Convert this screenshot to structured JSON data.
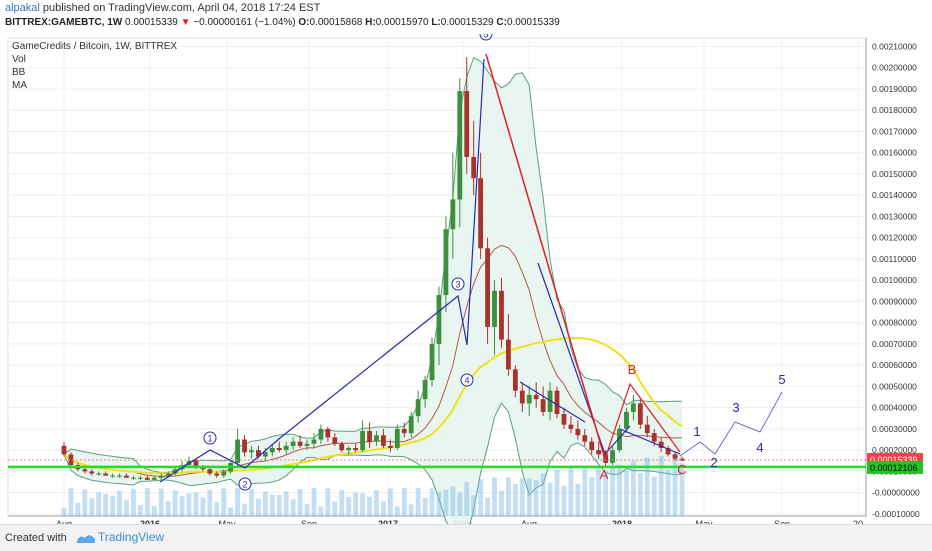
{
  "header": {
    "author": "alpakal",
    "published": "published on TradingView.com, April 04, 2018 17:24 EST",
    "symbol": "BITTREX:GAMEBTC, 1W",
    "price": "0.00015339",
    "change_arrow": "▼",
    "change": "−0.00000161 (−1.04%)",
    "o_label": "O:",
    "o_value": "0.00015868",
    "h_label": "H:",
    "h_value": "0.00015970",
    "l_label": "L:",
    "l_value": "0.00015329",
    "c_label": "C:",
    "c_value": "0.00015339"
  },
  "legend": {
    "title": "GameCredits / Bitcoin, 1W, BITTREX",
    "items": [
      "Vol",
      "BB",
      "MA"
    ]
  },
  "footer": {
    "created_with": "Created with",
    "brand": "TradingView"
  },
  "colors": {
    "up": "#3c8f3c",
    "down": "#a8322c",
    "bb_band": "#5aa080",
    "bb_fill": "#e6f4ee",
    "ma_yellow": "#f0e21a",
    "bb_mid": "#b05a4a",
    "wave_blue": "#2a2ab0",
    "red_line": "#e02020",
    "support_green": "#21e021",
    "price_tag": "#ef4444",
    "support_tag": "#21c521",
    "volume": "#7ab8e8"
  },
  "chart_data": {
    "type": "candlestick",
    "x_ticks": [
      "Aug",
      "2016",
      "May",
      "Sep",
      "2017",
      "May",
      "Aug",
      "2018",
      "May",
      "Sep",
      "20"
    ],
    "y_ticks": [
      "0.00210000",
      "0.00200000",
      "0.00190000",
      "0.00180000",
      "0.00170000",
      "0.00160000",
      "0.00150000",
      "0.00140000",
      "0.00130000",
      "0.00120000",
      "0.00110000",
      "0.00100000",
      "0.00090000",
      "0.00080000",
      "0.00070000",
      "0.00060000",
      "0.00050000",
      "0.00040000",
      "0.00030000",
      "0.00020000",
      "0.00010000",
      "-0.00000000",
      "-0.00010000"
    ],
    "ylim": [
      -0.00011,
      0.00214
    ],
    "current_price_label": "0.00015339",
    "support_label": "0.00012106",
    "support_level": 0.00012106,
    "wave_labels_circled": [
      "1",
      "2",
      "3",
      "4",
      "5"
    ],
    "wave_labels_plain": [
      "A",
      "B",
      "C",
      "1",
      "2",
      "3",
      "4",
      "5"
    ],
    "candles_approx": [
      [
        0.00022,
        0.00024,
        0.00017,
        0.00018
      ],
      [
        0.00018,
        0.00019,
        0.00012,
        0.00013
      ],
      [
        0.00013,
        0.00014,
        0.0001,
        0.00011
      ],
      [
        0.00011,
        0.00012,
        9e-05,
        0.0001
      ],
      [
        0.0001,
        0.00011,
        8e-05,
        9e-05
      ],
      [
        9e-05,
        0.0001,
        8e-05,
        9e-05
      ],
      [
        9e-05,
        0.0001,
        8e-05,
        8e-05
      ],
      [
        8e-05,
        9e-05,
        7e-05,
        8e-05
      ],
      [
        8e-05,
        9e-05,
        7e-05,
        8e-05
      ],
      [
        8e-05,
        9e-05,
        7e-05,
        7e-05
      ],
      [
        7e-05,
        8e-05,
        6e-05,
        7e-05
      ],
      [
        7e-05,
        8e-05,
        6e-05,
        7e-05
      ],
      [
        7e-05,
        8e-05,
        6e-05,
        6e-05
      ],
      [
        6e-05,
        8e-05,
        6e-05,
        7e-05
      ],
      [
        7e-05,
        9e-05,
        6e-05,
        8e-05
      ],
      [
        8e-05,
        0.0001,
        7e-05,
        9e-05
      ],
      [
        9e-05,
        0.00012,
        8e-05,
        0.00011
      ],
      [
        0.00011,
        0.00015,
        0.0001,
        0.00013
      ],
      [
        0.00013,
        0.00017,
        0.00012,
        0.00015
      ],
      [
        0.00015,
        0.00016,
        0.00011,
        0.00012
      ],
      [
        0.00012,
        0.00013,
        0.0001,
        0.00011
      ],
      [
        0.00011,
        0.00012,
        8e-05,
        9e-05
      ],
      [
        9e-05,
        0.0001,
        7e-05,
        8e-05
      ],
      [
        8e-05,
        0.00011,
        7e-05,
        0.0001
      ],
      [
        0.0001,
        0.00015,
        9e-05,
        0.00014
      ],
      [
        0.00014,
        0.0003,
        0.00012,
        0.00025
      ],
      [
        0.00025,
        0.00027,
        0.00017,
        0.00019
      ],
      [
        0.00019,
        0.00022,
        0.00016,
        0.0002
      ],
      [
        0.0002,
        0.00022,
        0.00016,
        0.00017
      ],
      [
        0.00017,
        0.00021,
        0.00015,
        0.00019
      ],
      [
        0.00019,
        0.00023,
        0.00017,
        0.00021
      ],
      [
        0.00021,
        0.00024,
        0.00019,
        0.0002
      ],
      [
        0.0002,
        0.00024,
        0.00018,
        0.00022
      ],
      [
        0.00022,
        0.00026,
        0.0002,
        0.00024
      ],
      [
        0.00024,
        0.00027,
        0.00021,
        0.00022
      ],
      [
        0.00022,
        0.00025,
        0.0002,
        0.00023
      ],
      [
        0.00023,
        0.00028,
        0.00021,
        0.00025
      ],
      [
        0.00025,
        0.00032,
        0.00023,
        0.0003
      ],
      [
        0.0003,
        0.00031,
        0.00024,
        0.00026
      ],
      [
        0.00026,
        0.00028,
        0.00022,
        0.00023
      ],
      [
        0.00023,
        0.00024,
        0.00019,
        0.0002
      ],
      [
        0.0002,
        0.00022,
        0.00018,
        0.00021
      ],
      [
        0.00021,
        0.00023,
        0.00019,
        0.0002
      ],
      [
        0.0002,
        0.00034,
        0.00019,
        0.00029
      ],
      [
        0.00029,
        0.00033,
        0.00021,
        0.00024
      ],
      [
        0.00024,
        0.00029,
        0.00022,
        0.00027
      ],
      [
        0.00027,
        0.0003,
        0.00021,
        0.00022
      ],
      [
        0.00022,
        0.00025,
        0.00019,
        0.00021
      ],
      [
        0.00021,
        0.00032,
        0.0002,
        0.0003
      ],
      [
        0.0003,
        0.00033,
        0.00026,
        0.00028
      ],
      [
        0.00028,
        0.00038,
        0.00026,
        0.00036
      ],
      [
        0.00036,
        0.00048,
        0.00033,
        0.00044
      ],
      [
        0.00044,
        0.00055,
        0.0004,
        0.00053
      ],
      [
        0.00053,
        0.00073,
        0.0005,
        0.0007
      ],
      [
        0.0007,
        0.00097,
        0.0006,
        0.00093
      ],
      [
        0.00093,
        0.0013,
        0.00085,
        0.00124
      ],
      [
        0.00124,
        0.0016,
        0.0011,
        0.00138
      ],
      [
        0.00138,
        0.00195,
        0.00125,
        0.00189
      ],
      [
        0.00189,
        0.00205,
        0.0015,
        0.00158
      ],
      [
        0.00158,
        0.00175,
        0.0014,
        0.00148
      ],
      [
        0.00148,
        0.0016,
        0.0011,
        0.00115
      ],
      [
        0.00115,
        0.0012,
        0.0007,
        0.00078
      ],
      [
        0.00078,
        0.001,
        0.00065,
        0.00095
      ],
      [
        0.00095,
        0.00101,
        0.00068,
        0.00072
      ],
      [
        0.00072,
        0.00084,
        0.00055,
        0.00058
      ],
      [
        0.00058,
        0.0006,
        0.00045,
        0.00048
      ],
      [
        0.00048,
        0.00052,
        0.00038,
        0.00042
      ],
      [
        0.00042,
        0.0005,
        0.00036,
        0.00046
      ],
      [
        0.00046,
        0.00052,
        0.0004,
        0.00044
      ],
      [
        0.00044,
        0.0005,
        0.00036,
        0.00038
      ],
      [
        0.00038,
        0.00052,
        0.00034,
        0.00048
      ],
      [
        0.00048,
        0.0005,
        0.00035,
        0.00037
      ],
      [
        0.00037,
        0.0004,
        0.0003,
        0.00032
      ],
      [
        0.00032,
        0.00036,
        0.00028,
        0.0003
      ],
      [
        0.0003,
        0.00034,
        0.00025,
        0.00027
      ],
      [
        0.00027,
        0.0003,
        0.00022,
        0.00024
      ],
      [
        0.00024,
        0.00026,
        0.00018,
        0.0002
      ],
      [
        0.0002,
        0.00024,
        0.00016,
        0.00018
      ],
      [
        0.00018,
        0.0002,
        0.00012,
        0.00014
      ],
      [
        0.00014,
        0.00022,
        0.00013,
        0.0002
      ],
      [
        0.0002,
        0.00032,
        0.00019,
        0.0003
      ],
      [
        0.0003,
        0.0004,
        0.00028,
        0.00038
      ],
      [
        0.00038,
        0.00046,
        0.00034,
        0.00042
      ],
      [
        0.00042,
        0.00044,
        0.0003,
        0.00032
      ],
      [
        0.00032,
        0.00036,
        0.00026,
        0.00028
      ],
      [
        0.00028,
        0.0003,
        0.00022,
        0.00024
      ],
      [
        0.00024,
        0.00026,
        0.00019,
        0.00021
      ],
      [
        0.00021,
        0.00022,
        0.00017,
        0.00018
      ],
      [
        0.00018,
        0.00019,
        0.00015,
        0.00016
      ],
      [
        0.00016,
        0.00017,
        0.00015,
        0.00015
      ]
    ]
  }
}
